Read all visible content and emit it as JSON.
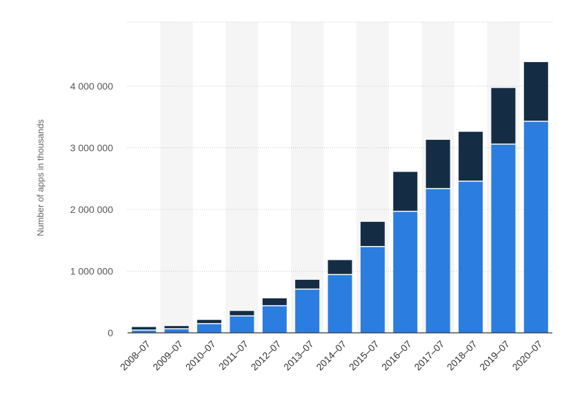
{
  "chart_data": {
    "type": "bar",
    "stacked": true,
    "title": "",
    "xlabel": "",
    "ylabel": "Number of apps in thousands",
    "categories": [
      "2008–07",
      "2009–07",
      "2010–07",
      "2011–07",
      "2012–07",
      "2013–07",
      "2014–07",
      "2015–07",
      "2016–07",
      "2017–07",
      "2018–07",
      "2019–07",
      "2020–07"
    ],
    "series": [
      {
        "color": "#2b7de0",
        "values": [
          45000,
          65000,
          150000,
          275000,
          440000,
          710000,
          945000,
          1400000,
          1970000,
          2340000,
          2460000,
          3060000,
          3430000
        ]
      },
      {
        "color": "#142d45",
        "values": [
          50000,
          45000,
          60000,
          80000,
          120000,
          150000,
          235000,
          400000,
          640000,
          790000,
          800000,
          910000,
          960000
        ]
      }
    ],
    "ylim": [
      0,
      5000000
    ],
    "yticks": [
      0,
      1000000,
      2000000,
      3000000,
      4000000
    ],
    "ytick_labels": [
      "0",
      "1 000 000",
      "2 000 000",
      "3 000 000",
      "4 000 000"
    ],
    "grid": true,
    "legend": "none",
    "colors": {
      "grid": "#c8c8c8",
      "axis": "#333333",
      "band": "#f5f5f5"
    }
  }
}
